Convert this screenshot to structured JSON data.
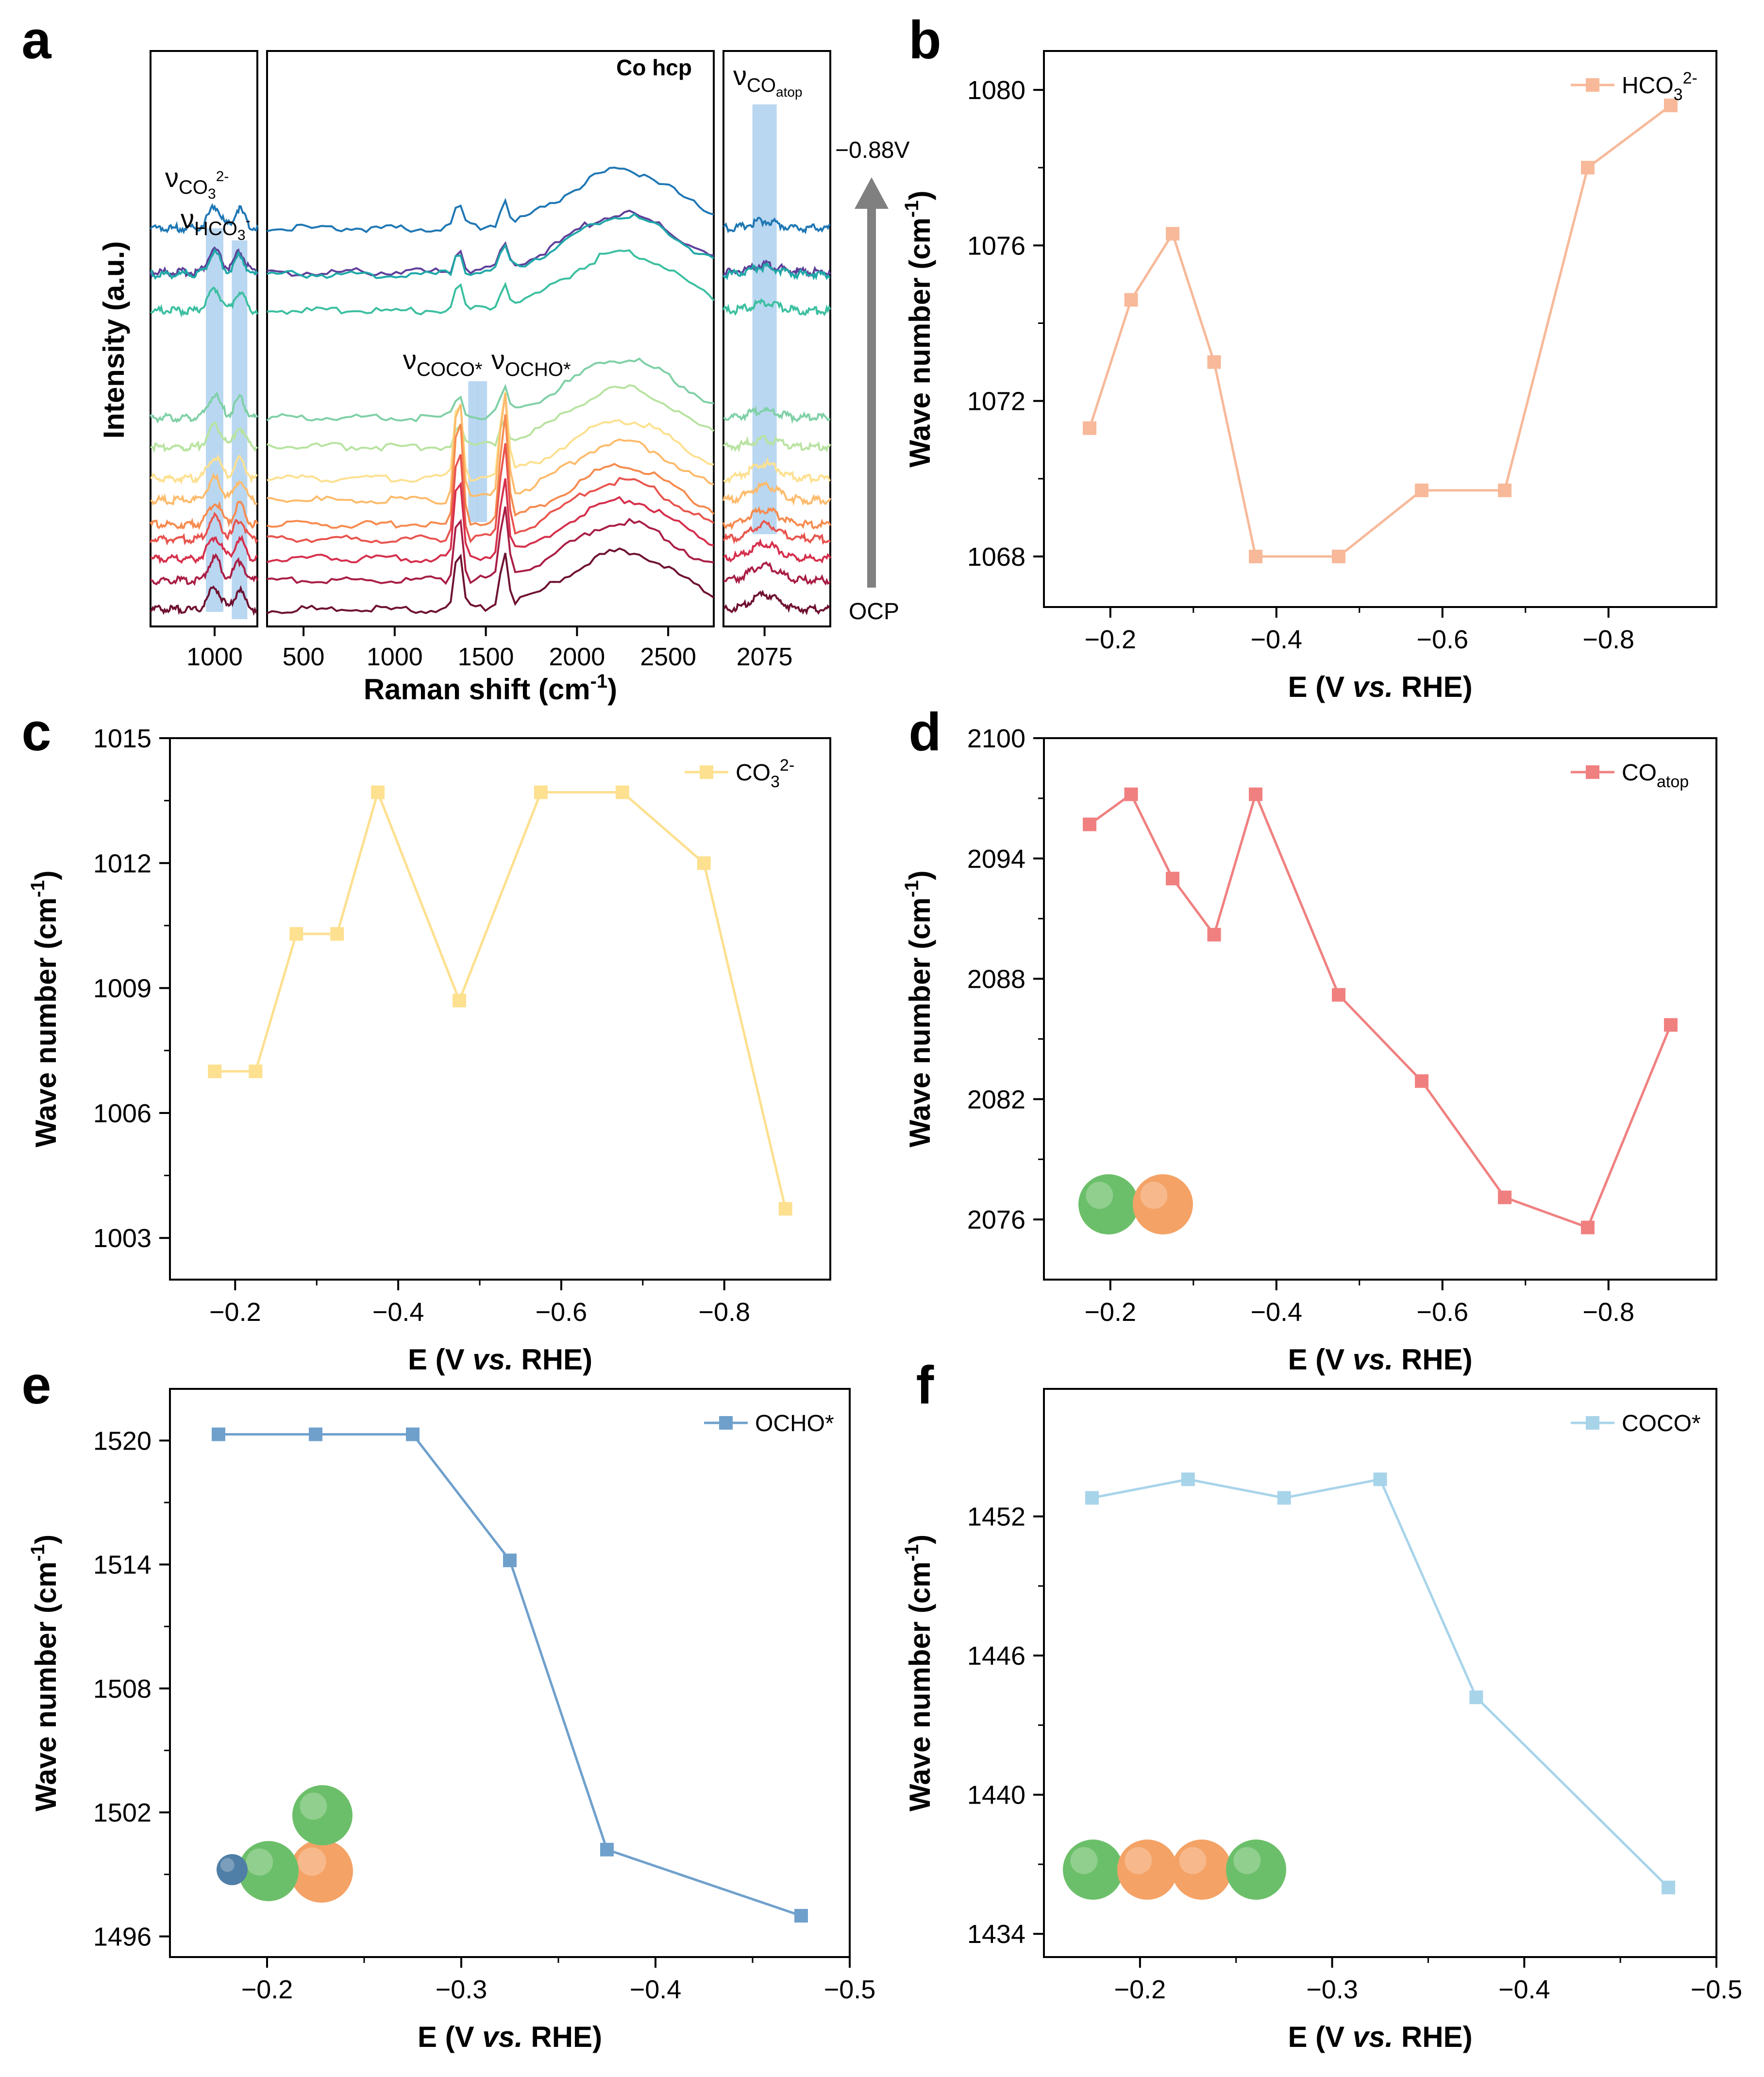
{
  "figure": {
    "panel_letters": [
      "a",
      "b",
      "c",
      "d",
      "e",
      "f"
    ]
  },
  "colors": {
    "hco3": "#f7b999",
    "co3": "#fde090",
    "coatop": "#f08080",
    "ocho": "#6fa0cc",
    "coco": "#a8d4ea",
    "band": "#a9cdee",
    "arrow": "#808080",
    "sphere_green": "#6cbf6a",
    "sphere_orange": "#f4a266",
    "sphere_blue": "#4f7ea6"
  },
  "spectra_colors": [
    "#5f3f9a",
    "#1f77b4",
    "#1fa8a8",
    "#3cbfa0",
    "#7fd0a6",
    "#b8e3a0",
    "#fde090",
    "#fdbb6c",
    "#f68b4f",
    "#e8544e",
    "#d62f4c",
    "#a91e45",
    "#6e1132"
  ],
  "chart_data": [
    {
      "panel": "a",
      "type": "line",
      "title": "",
      "sub_panel_labels": [
        "Co hcp"
      ],
      "xlabel": "Raman shift (cm⁻¹)",
      "ylabel": "Intensity (a.u.)",
      "x_ticks_left": [
        "1000"
      ],
      "x_ticks_middle": [
        "500",
        "1000",
        "1500",
        "2000",
        "2500"
      ],
      "x_ticks_right": [
        "2075"
      ],
      "x_ranges": [
        [
          820,
          1120
        ],
        [
          300,
          2750
        ],
        [
          2050,
          2115
        ]
      ],
      "band_positions_cm": [
        1000,
        1070,
        1430,
        1480,
        2075
      ],
      "annotations": [
        "νCO₃²⁻",
        "νHCO₃⁻",
        "νCOCO*",
        "νOCHO*",
        "νCOatop",
        "−0.88V",
        "OCP"
      ],
      "peaks_cm": [
        1350,
        1600,
        2300
      ],
      "series_count": 13
    },
    {
      "panel": "b",
      "type": "line",
      "series": [
        {
          "name": "HCO₃²⁻",
          "values": [
            1071.3,
            1074.6,
            1076.3,
            1073.0,
            1068.0,
            1068.0,
            1069.7,
            1069.7,
            1078.0,
            1079.6
          ]
        }
      ],
      "x": [
        -0.175,
        -0.225,
        -0.275,
        -0.325,
        -0.375,
        -0.475,
        -0.575,
        -0.675,
        -0.775,
        -0.875
      ],
      "xlabel": "E (V vs. RHE)",
      "ylabel": "Wave number (cm⁻¹)",
      "xlim": [
        -0.12,
        -0.93
      ],
      "ylim": [
        1066.7,
        1081.0
      ],
      "x_ticks": [
        -0.2,
        -0.4,
        -0.6,
        -0.8
      ],
      "y_ticks": [
        1068,
        1072,
        1076,
        1080
      ],
      "x_tick_labels": [
        "−0.2",
        "−0.4",
        "−0.6",
        "−0.8"
      ],
      "y_tick_labels": [
        "1068",
        "1072",
        "1076",
        "1080"
      ],
      "legend_position": "top-right"
    },
    {
      "panel": "c",
      "type": "line",
      "series": [
        {
          "name": "CO₃²⁻",
          "values": [
            1007.0,
            1007.0,
            1010.3,
            1010.3,
            1013.7,
            1008.7,
            1013.7,
            1013.7,
            1012.0,
            1003.7
          ]
        }
      ],
      "x": [
        -0.175,
        -0.225,
        -0.275,
        -0.325,
        -0.375,
        -0.475,
        -0.575,
        -0.675,
        -0.775,
        -0.875
      ],
      "xlabel": "E (V vs. RHE)",
      "ylabel": "Wave number (cm⁻¹)",
      "xlim": [
        -0.12,
        -0.93
      ],
      "ylim": [
        1002.0,
        1015.0
      ],
      "x_ticks": [
        -0.2,
        -0.4,
        -0.6,
        -0.8
      ],
      "y_ticks": [
        1003,
        1006,
        1009,
        1012,
        1015
      ],
      "x_tick_labels": [
        "−0.2",
        "−0.4",
        "−0.6",
        "−0.8"
      ],
      "y_tick_labels": [
        "1003",
        "1006",
        "1009",
        "1012",
        "1015"
      ],
      "legend_position": "top-right"
    },
    {
      "panel": "d",
      "type": "line",
      "series": [
        {
          "name": "COatop",
          "values": [
            2095.7,
            2097.2,
            2093.0,
            2090.2,
            2097.2,
            2087.2,
            2082.9,
            2077.1,
            2075.6,
            2085.7
          ]
        }
      ],
      "x": [
        -0.175,
        -0.225,
        -0.275,
        -0.325,
        -0.375,
        -0.475,
        -0.575,
        -0.675,
        -0.775,
        -0.875
      ],
      "xlabel": "E (V vs. RHE)",
      "ylabel": "Wave number (cm⁻¹)",
      "xlim": [
        -0.12,
        -0.93
      ],
      "ylim": [
        2073.0,
        2100.0
      ],
      "x_ticks": [
        -0.2,
        -0.4,
        -0.6,
        -0.8
      ],
      "y_ticks": [
        2076,
        2082,
        2088,
        2094,
        2100
      ],
      "x_tick_labels": [
        "−0.2",
        "−0.4",
        "−0.6",
        "−0.8"
      ],
      "y_tick_labels": [
        "2076",
        "2082",
        "2088",
        "2094",
        "2100"
      ],
      "legend_position": "top-right"
    },
    {
      "panel": "e",
      "type": "line",
      "series": [
        {
          "name": "OCHO*",
          "values": [
            1520.3,
            1520.3,
            1520.3,
            1514.2,
            1500.2,
            1497.0
          ]
        }
      ],
      "x": [
        -0.175,
        -0.225,
        -0.275,
        -0.325,
        -0.375,
        -0.475
      ],
      "xlabel": "E (V vs. RHE)",
      "ylabel": "Wave number (cm⁻¹)",
      "xlim": [
        -0.15,
        -0.5
      ],
      "ylim": [
        1495.0,
        1522.5
      ],
      "x_ticks": [
        -0.2,
        -0.3,
        -0.4,
        -0.5
      ],
      "y_ticks": [
        1496,
        1502,
        1508,
        1514,
        1520
      ],
      "x_tick_labels": [
        "−0.2",
        "−0.3",
        "−0.4",
        "−0.5"
      ],
      "y_tick_labels": [
        "1496",
        "1502",
        "1508",
        "1514",
        "1520"
      ],
      "legend_position": "top-right"
    },
    {
      "panel": "f",
      "type": "line",
      "series": [
        {
          "name": "COCO*",
          "values": [
            1452.8,
            1453.6,
            1452.8,
            1453.6,
            1444.2,
            1436.0
          ]
        }
      ],
      "x": [
        -0.175,
        -0.225,
        -0.275,
        -0.325,
        -0.375,
        -0.475
      ],
      "xlabel": "E (V vs. RHE)",
      "ylabel": "Wave number (cm⁻¹)",
      "xlim": [
        -0.15,
        -0.5
      ],
      "ylim": [
        1433.0,
        1457.5
      ],
      "x_ticks": [
        -0.2,
        -0.3,
        -0.4,
        -0.5
      ],
      "y_ticks": [
        1434,
        1440,
        1446,
        1452
      ],
      "x_tick_labels": [
        "−0.2",
        "−0.3",
        "−0.4",
        "−0.5"
      ],
      "y_tick_labels": [
        "1434",
        "1440",
        "1446",
        "1452"
      ],
      "legend_position": "top-right"
    }
  ]
}
